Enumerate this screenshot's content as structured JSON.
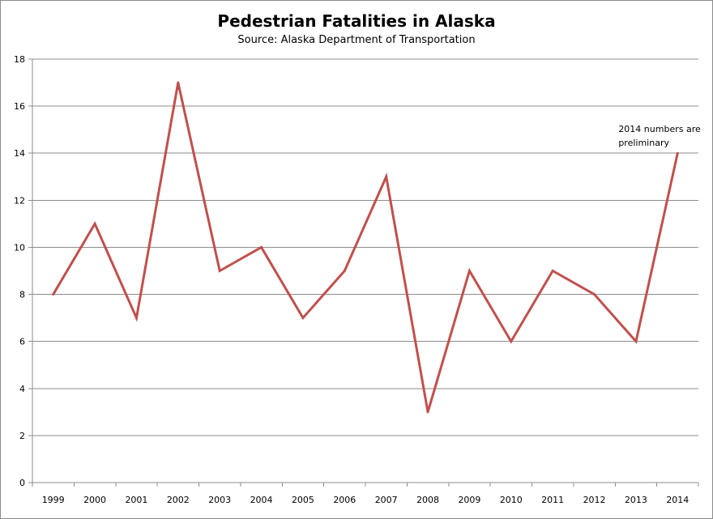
{
  "chart_data": {
    "type": "line",
    "title": "Pedestrian Fatalities in Alaska",
    "subtitle": "Source: Alaska Department of Transportation",
    "xlabel": "",
    "ylabel": "",
    "categories": [
      "1999",
      "2000",
      "2001",
      "2002",
      "2003",
      "2004",
      "2005",
      "2006",
      "2007",
      "2008",
      "2009",
      "2010",
      "2011",
      "2012",
      "2013",
      "2014"
    ],
    "series": [
      {
        "values": [
          8,
          11,
          7,
          17,
          9,
          10,
          7,
          9,
          13,
          3,
          9,
          6,
          9,
          8,
          6,
          14
        ],
        "color": "#c0504d"
      }
    ],
    "ylim": [
      0,
      18
    ],
    "yticks": [
      "0",
      "2",
      "4",
      "6",
      "8",
      "10",
      "12",
      "14",
      "16",
      "18"
    ],
    "grid": true,
    "legend": "none",
    "annotations": [
      {
        "category": "2014",
        "lines": [
          "2014 numbers are",
          "preliminary"
        ]
      }
    ]
  }
}
